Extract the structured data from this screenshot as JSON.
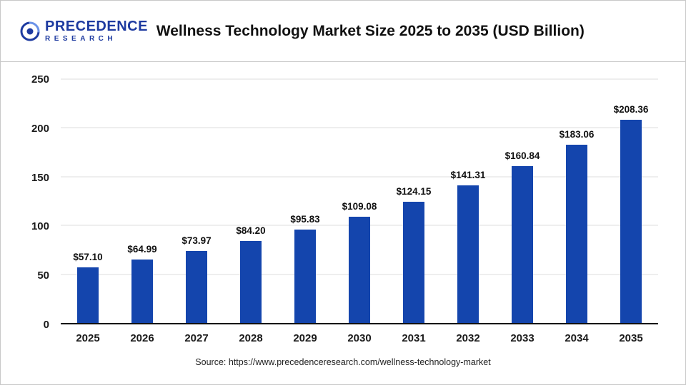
{
  "header": {
    "logo": {
      "line1": "PRECEDENCE",
      "line2": "RESEARCH"
    },
    "title": "Wellness Technology Market Size 2025 to 2035 (USD Billion)"
  },
  "footer": {
    "source": "Source: https://www.precedenceresearch.com/wellness-technology-market"
  },
  "chart_data": {
    "type": "bar",
    "title": "Wellness Technology Market Size 2025 to 2035 (USD Billion)",
    "categories": [
      "2025",
      "2026",
      "2027",
      "2028",
      "2029",
      "2030",
      "2031",
      "2032",
      "2033",
      "2034",
      "2035"
    ],
    "values": [
      57.1,
      64.99,
      73.97,
      84.2,
      95.83,
      109.08,
      124.15,
      141.31,
      160.84,
      183.06,
      208.36
    ],
    "value_labels": [
      "$57.10",
      "$64.99",
      "$73.97",
      "$84.20",
      "$95.83",
      "$109.08",
      "$124.15",
      "$141.31",
      "$160.84",
      "$183.06",
      "$208.36"
    ],
    "xlabel": "",
    "ylabel": "",
    "ylim": [
      0,
      250
    ],
    "yticks": [
      0,
      50,
      100,
      150,
      200,
      250
    ],
    "grid": true,
    "legend_position": "none",
    "bar_color": "#1445ad",
    "grid_color": "#dcdcdc",
    "axis_color": "#111111"
  }
}
